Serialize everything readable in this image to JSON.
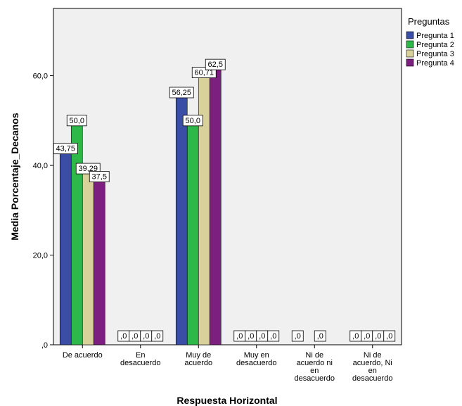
{
  "chart_data": {
    "type": "bar",
    "xlabel": "Respuesta Horizontal",
    "ylabel": "Media Porcentaje_Decanos",
    "ylim": [
      0,
      75
    ],
    "yticks": [
      {
        "value": 0,
        "label": ",0"
      },
      {
        "value": 20,
        "label": "20,0"
      },
      {
        "value": 40,
        "label": "40,0"
      },
      {
        "value": 60,
        "label": "60,0"
      }
    ],
    "categories": [
      {
        "lines": [
          "De acuerdo"
        ]
      },
      {
        "lines": [
          "En",
          "desacuerdo"
        ]
      },
      {
        "lines": [
          "Muy de",
          "acuerdo"
        ]
      },
      {
        "lines": [
          "Muy en",
          "desacuerdo"
        ]
      },
      {
        "lines": [
          "Ni de",
          "acuerdo ni",
          "en",
          "desacuerdo"
        ]
      },
      {
        "lines": [
          "Ni de",
          "acuerdo, Ni",
          "en",
          "desacuerdo"
        ]
      }
    ],
    "series": [
      {
        "name": "Pregunta 1",
        "color": "#3b4ea6",
        "values": [
          43.75,
          0,
          56.25,
          0,
          0,
          0
        ],
        "labels": [
          "43,75",
          ",0",
          "56,25",
          ",0",
          ",0",
          ",0"
        ]
      },
      {
        "name": "Pregunta 2",
        "color": "#2fb84a",
        "values": [
          50.0,
          0,
          50.0,
          0,
          null,
          0
        ],
        "labels": [
          "50,0",
          ",0",
          "50,0",
          ",0",
          null,
          ",0"
        ]
      },
      {
        "name": "Pregunta 3",
        "color": "#d9d19a",
        "values": [
          39.29,
          0,
          60.71,
          0,
          0,
          0
        ],
        "labels": [
          "39,29",
          ",0",
          "60,71",
          ",0",
          ",0",
          ",0"
        ]
      },
      {
        "name": "Pregunta 4",
        "color": "#7d1f7f",
        "values": [
          37.5,
          0,
          62.5,
          0,
          null,
          0
        ],
        "labels": [
          "37,5",
          ",0",
          "62,5",
          ",0",
          null,
          ",0"
        ]
      }
    ],
    "legend": {
      "title": "Preguntas",
      "position": "top-right"
    },
    "background": "#f0f0f0",
    "grid": false
  }
}
